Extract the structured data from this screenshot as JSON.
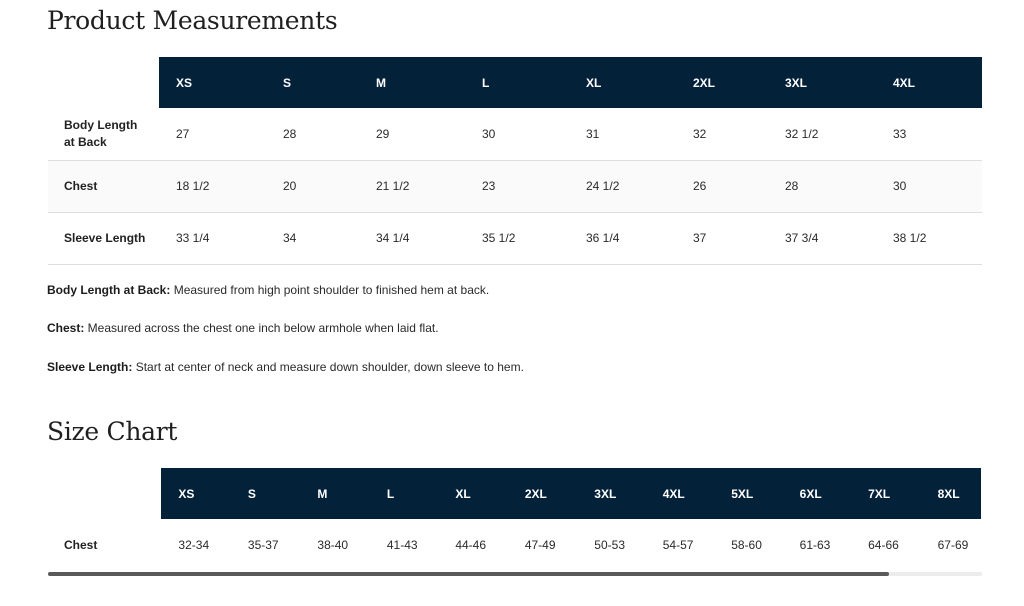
{
  "measurements": {
    "title": "Product Measurements",
    "sizes": [
      "XS",
      "S",
      "M",
      "L",
      "XL",
      "2XL",
      "3XL",
      "4XL"
    ],
    "rows": [
      {
        "label": "Body Length at Back",
        "values": [
          "27",
          "28",
          "29",
          "30",
          "31",
          "32",
          "32 1/2",
          "33"
        ]
      },
      {
        "label": "Chest",
        "values": [
          "18 1/2",
          "20",
          "21 1/2",
          "23",
          "24 1/2",
          "26",
          "28",
          "30"
        ]
      },
      {
        "label": "Sleeve Length",
        "values": [
          "33 1/4",
          "34",
          "34 1/4",
          "35 1/2",
          "36 1/4",
          "37",
          "37 3/4",
          "38 1/2"
        ]
      }
    ],
    "notes": [
      {
        "term": "Body Length at Back:",
        "text": " Measured from high point shoulder to finished hem at back."
      },
      {
        "term": "Chest:",
        "text": " Measured across the chest one inch below armhole when laid flat."
      },
      {
        "term": "Sleeve Length:",
        "text": " Start at center of neck and measure down shoulder, down sleeve to hem."
      }
    ]
  },
  "size_chart": {
    "title": "Size Chart",
    "sizes": [
      "XS",
      "S",
      "M",
      "L",
      "XL",
      "2XL",
      "3XL",
      "4XL",
      "5XL",
      "6XL",
      "7XL",
      "8XL"
    ],
    "rows": [
      {
        "label": "Chest",
        "values": [
          "32-34",
          "35-37",
          "38-40",
          "41-43",
          "44-46",
          "47-49",
          "50-53",
          "54-57",
          "58-60",
          "61-63",
          "64-66",
          "67-69"
        ]
      }
    ]
  },
  "scrollbar": {
    "thumb_fraction": 0.9
  },
  "colors": {
    "header_bg": "#04213a",
    "header_text": "#ffffff"
  }
}
